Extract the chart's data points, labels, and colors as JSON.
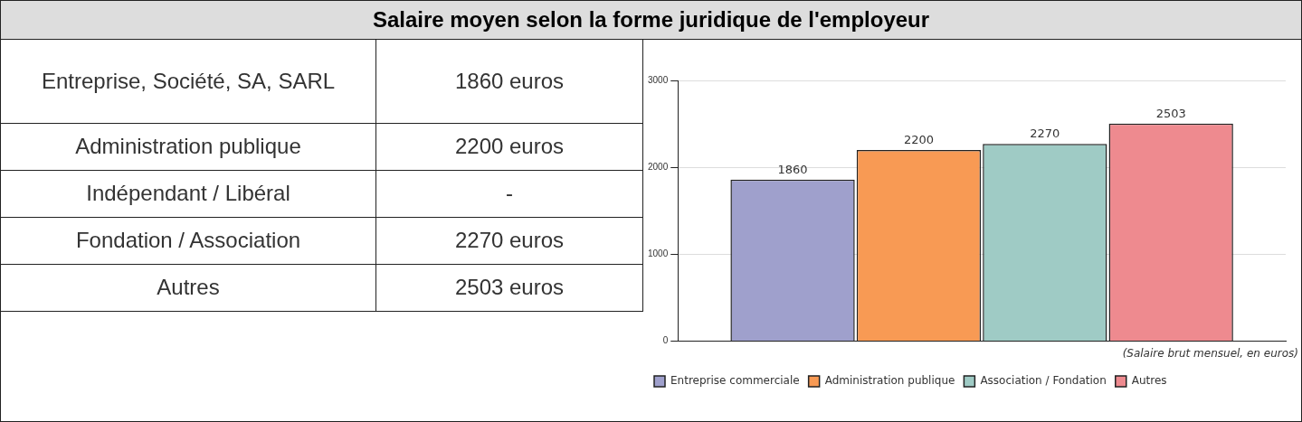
{
  "chart_data": [
    {
      "type": "other",
      "title": "Salaire moyen selon la forme juridique de l'employeur",
      "annotations": [
        "Entreprise, Société, SA, SARL",
        "1860 euros",
        "Administration publique",
        "2200 euros",
        "Indépendant / Libéral",
        "-",
        "Fondation / Association",
        "2270 euros",
        "Autres",
        "2503 euros"
      ]
    },
    {
      "type": "bar",
      "categories": [
        null
      ],
      "series": [
        {
          "name": "Entreprise commerciale",
          "color": "#9fa0cc",
          "values": [
            1860
          ]
        },
        {
          "name": "Administration publique",
          "color": "#f89a54",
          "values": [
            2200
          ]
        },
        {
          "name": "Association / Fondation",
          "color": "#9fcbc5",
          "values": [
            2270
          ]
        },
        {
          "name": "Autres",
          "color": "#ee8a8f",
          "values": [
            2503
          ]
        }
      ],
      "ylim": [
        0,
        3000
      ],
      "yticks": [
        0,
        1000,
        2000,
        3000
      ],
      "grid": "y",
      "data_labels": true,
      "legend": "bottom",
      "annotations": [
        "(Salaire brut mensuel, en euros)"
      ]
    }
  ]
}
